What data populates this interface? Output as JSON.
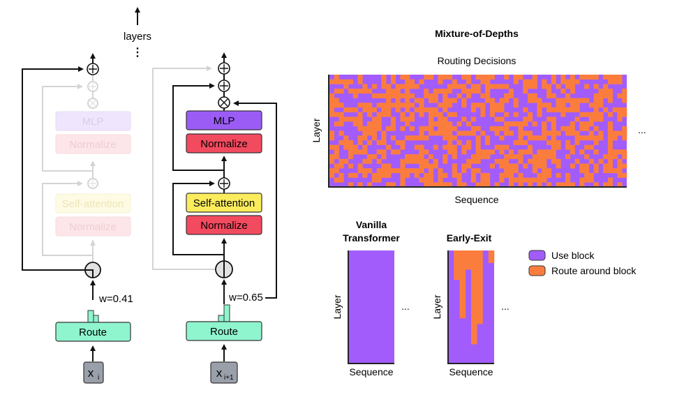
{
  "top": {
    "layers_label": "layers",
    "dots": "⋮"
  },
  "blocks": {
    "mlp": "MLP",
    "normalize": "Normalize",
    "self_attention": "Self-attention",
    "route": "Route"
  },
  "tokens": [
    {
      "name": "x",
      "sub": "i",
      "weight_label": "w=0.41"
    },
    {
      "name": "x",
      "sub": "i+1",
      "weight_label": "w=0.65"
    }
  ],
  "ops": {
    "add": "⊕",
    "mul": "⊗"
  },
  "right": {
    "title": "Mixture-of-Depths",
    "routing_title": "Routing Decisions",
    "layer_label": "Layer",
    "sequence_label": "Sequence",
    "ellipsis": "...",
    "vanilla_title_1": "Vanilla",
    "vanilla_title_2": "Transformer",
    "early_exit_title": "Early-Exit"
  },
  "legend": [
    {
      "label": "Use block",
      "color": "#a25cfc"
    },
    {
      "label": "Route around block",
      "color": "#fb7d3e"
    }
  ],
  "colors": {
    "use": "#a25cfc",
    "route": "#fb7d3e",
    "mlp": "#9b5cf6",
    "normalize": "#f24a5f",
    "self_attention": "#faec5c",
    "route_box": "#8ff5cf",
    "token": "#9aa0aa"
  },
  "early_exit_columns_used_fraction": [
    1.0,
    0.26,
    0.6,
    0.17,
    0.83,
    0.65,
    1.0,
    0.11
  ]
}
